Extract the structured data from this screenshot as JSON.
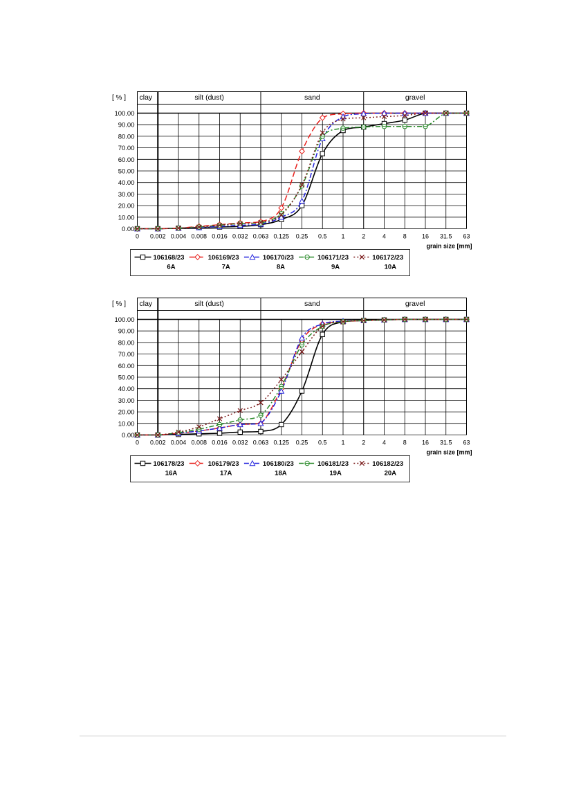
{
  "chart_data": [
    {
      "type": "line",
      "ylabel": "[ % ]",
      "xlabel": "grain size [mm]",
      "x_tick_labels": [
        "0",
        "0.002",
        "0.004",
        "0.008",
        "0.016",
        "0.032",
        "0.063",
        "0.125",
        "0.25",
        "0.5",
        "1",
        "2",
        "4",
        "8",
        "16",
        "31.5",
        "63"
      ],
      "y_tick_labels": [
        "0.00",
        "10.00",
        "20.00",
        "30.00",
        "40.00",
        "50.00",
        "60.00",
        "70.00",
        "80.00",
        "90.00",
        "100.00"
      ],
      "ylim": [
        0,
        100
      ],
      "zones": [
        "clay",
        "silt (dust)",
        "sand",
        "gravel"
      ],
      "legend_placement": "bottom",
      "series": [
        {
          "name": "106168/23",
          "sample": "6A",
          "color": "#000000",
          "dash": "solid",
          "marker": "square",
          "values": [
            0,
            0,
            0.5,
            1,
            1.5,
            2,
            3.5,
            8,
            20,
            65,
            85,
            88,
            91,
            94,
            100,
            100,
            100
          ]
        },
        {
          "name": "106169/23",
          "sample": "7A",
          "color": "#e8201c",
          "dash": "dash",
          "marker": "diamond",
          "values": [
            0,
            0,
            0.5,
            2,
            3.5,
            5,
            6,
            18,
            67,
            96,
            99.5,
            100,
            100,
            100,
            100,
            100,
            100
          ]
        },
        {
          "name": "106170/23",
          "sample": "8A",
          "color": "#2222dd",
          "dash": "dashdot",
          "marker": "triangle",
          "values": [
            0,
            0,
            0.5,
            1,
            2,
            3,
            4,
            10,
            24,
            78,
            97,
            99.5,
            100,
            100,
            100,
            100,
            100
          ]
        },
        {
          "name": "106171/23",
          "sample": "9A",
          "color": "#2a8a2a",
          "dash": "dashdot",
          "marker": "circle",
          "values": [
            0,
            0,
            0.5,
            1.5,
            3,
            4.5,
            5,
            13,
            37,
            80,
            87,
            88,
            88.5,
            88.5,
            88.5,
            100,
            100
          ]
        },
        {
          "name": "106172/23",
          "sample": "10A",
          "color": "#7a1a1a",
          "dash": "dot",
          "marker": "x",
          "values": [
            0,
            0,
            0.5,
            1.5,
            3,
            4.5,
            5.5,
            12,
            38,
            83,
            95,
            96,
            97,
            98,
            100,
            100,
            100
          ]
        }
      ]
    },
    {
      "type": "line",
      "ylabel": "[ % ]",
      "xlabel": "grain size [mm]",
      "x_tick_labels": [
        "0",
        "0.002",
        "0.004",
        "0.008",
        "0.016",
        "0.032",
        "0.063",
        "0.125",
        "0.25",
        "0.5",
        "1",
        "2",
        "4",
        "8",
        "16",
        "31.5",
        "63"
      ],
      "y_tick_labels": [
        "0.00",
        "10.00",
        "20.00",
        "30.00",
        "40.00",
        "50.00",
        "60.00",
        "70.00",
        "80.00",
        "90.00",
        "100.00"
      ],
      "ylim": [
        0,
        100
      ],
      "zones": [
        "clay",
        "silt (dust)",
        "sand",
        "gravel"
      ],
      "legend_placement": "bottom",
      "series": [
        {
          "name": "106178/23",
          "sample": "16A",
          "color": "#000000",
          "dash": "solid",
          "marker": "square",
          "values": [
            0,
            0,
            0.5,
            1,
            1.5,
            2.5,
            3,
            9,
            38,
            87,
            98,
            99,
            99.5,
            100,
            100,
            100,
            100
          ]
        },
        {
          "name": "106179/23",
          "sample": "17A",
          "color": "#e8201c",
          "dash": "dash",
          "marker": "diamond",
          "values": [
            0,
            0,
            1.5,
            3.5,
            6,
            9,
            10,
            40,
            82,
            96,
            98,
            99,
            99.5,
            100,
            100,
            100,
            100
          ]
        },
        {
          "name": "106180/23",
          "sample": "18A",
          "color": "#2222dd",
          "dash": "dashdot",
          "marker": "triangle",
          "values": [
            0,
            0,
            1.5,
            3.5,
            6,
            9,
            10,
            38,
            84,
            96,
            98.5,
            99,
            99.5,
            100,
            100,
            100,
            100
          ]
        },
        {
          "name": "106181/23",
          "sample": "19A",
          "color": "#2a8a2a",
          "dash": "dashdot",
          "marker": "circle",
          "values": [
            0,
            0,
            2,
            5,
            9,
            13,
            17,
            42,
            78,
            94,
            98,
            99,
            99.5,
            100,
            100,
            100,
            100
          ]
        },
        {
          "name": "106182/23",
          "sample": "20A",
          "color": "#7a1a1a",
          "dash": "dot",
          "marker": "x",
          "values": [
            0,
            0,
            2.5,
            7,
            14,
            21,
            28,
            48,
            72,
            94,
            98,
            99,
            99.5,
            100,
            100,
            100,
            100
          ]
        }
      ]
    }
  ]
}
